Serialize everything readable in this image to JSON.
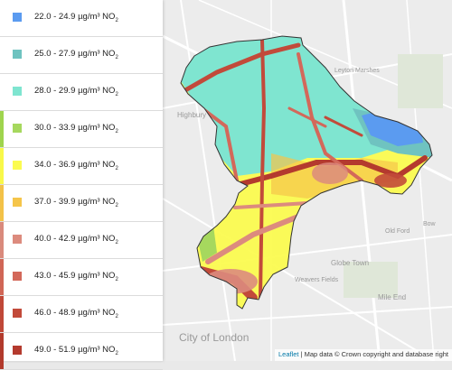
{
  "legend": {
    "items": [
      {
        "range": "22.0 - 24.9",
        "unit": "µg/m³ NO",
        "sub": "2",
        "color": "#5b9bf0",
        "bar": "#ffffff"
      },
      {
        "range": "25.0 - 27.9",
        "unit": "µg/m³ NO",
        "sub": "2",
        "color": "#6fc3c0",
        "bar": "#ffffff"
      },
      {
        "range": "28.0 - 29.9",
        "unit": "µg/m³ NO",
        "sub": "2",
        "color": "#7fe5d0",
        "bar": "#ffffff"
      },
      {
        "range": "30.0 - 33.9",
        "unit": "µg/m³ NO",
        "sub": "2",
        "color": "#a6d85e",
        "bar": "#9fd44e"
      },
      {
        "range": "34.0 - 36.9",
        "unit": "µg/m³ NO",
        "sub": "2",
        "color": "#fbfb50",
        "bar": "#f8f84a"
      },
      {
        "range": "37.0 - 39.9",
        "unit": "µg/m³ NO",
        "sub": "2",
        "color": "#f5c54a",
        "bar": "#f3c248"
      },
      {
        "range": "40.0 - 42.9",
        "unit": "µg/m³ NO",
        "sub": "2",
        "color": "#dc8b7e",
        "bar": "#d98a7c"
      },
      {
        "range": "43.0 - 45.9",
        "unit": "µg/m³ NO",
        "sub": "2",
        "color": "#d3685a",
        "bar": "#d06656"
      },
      {
        "range": "46.0 - 48.9",
        "unit": "µg/m³ NO",
        "sub": "2",
        "color": "#c24a3a",
        "bar": "#c04838"
      },
      {
        "range": "49.0 - 51.9",
        "unit": "µg/m³ NO",
        "sub": "2",
        "color": "#b43a2e",
        "bar": "#b23a2c"
      }
    ]
  },
  "map": {
    "place_labels": [
      "Highbury",
      "City of London",
      "Weavers Fields",
      "Globe Town",
      "Mile End",
      "Old Ford",
      "Leyton Marshes",
      "Bow"
    ],
    "colors": {
      "base": "#ececec",
      "roads": "#ffffff",
      "boundary": "#333333"
    }
  },
  "attribution": {
    "link": "Leaflet",
    "text": " | Map data © Crown copyright and database right"
  }
}
